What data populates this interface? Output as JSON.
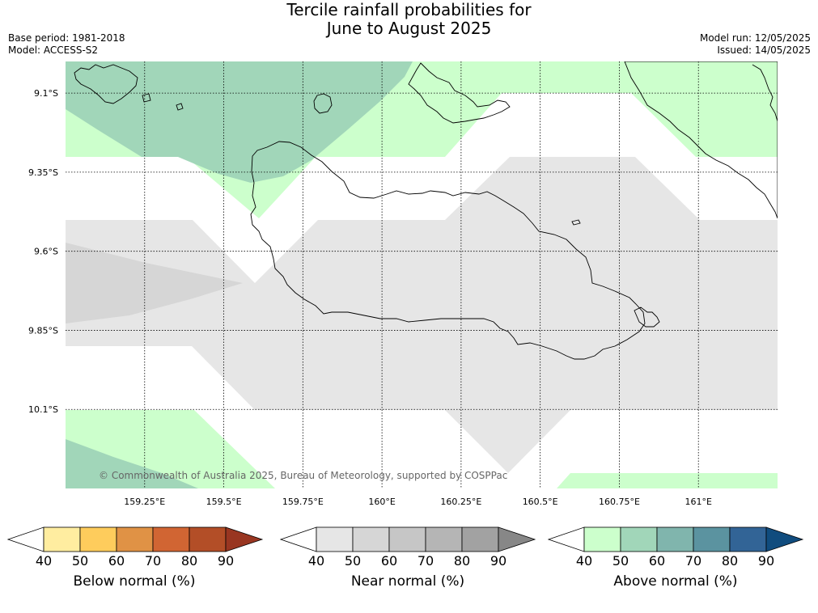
{
  "title": {
    "line1": "Tercile rainfall probabilities for",
    "line2": "June to August 2025"
  },
  "meta": {
    "base_period": "Base period: 1981-2018",
    "model": "Model: ACCESS-S2",
    "model_run": "Model run: 12/05/2025",
    "issued": "Issued: 14/05/2025"
  },
  "map": {
    "lat_labels": [
      "9.1°S",
      "9.35°S",
      "9.6°S",
      "9.85°S",
      "10.1°S"
    ],
    "lon_labels": [
      "159.25°E",
      "159.5°E",
      "159.75°E",
      "160°E",
      "160.25°E",
      "160.5°E",
      "160.75°E",
      "161°E"
    ],
    "lat_values": [
      -9.1,
      -9.35,
      -9.6,
      -9.85,
      -10.1
    ],
    "lon_values": [
      159.25,
      159.5,
      159.75,
      160.0,
      160.25,
      160.5,
      160.75,
      161.0
    ],
    "extent": {
      "lon_min": 159.0,
      "lon_max": 161.25,
      "lat_min": -10.35,
      "lat_max": -9.0
    },
    "copyright": "© Commonwealth of Australia 2025, Bureau of Meteorology, supported by COSPPac"
  },
  "colorbars": [
    {
      "label": "Below normal (%)",
      "ticks": [
        "40",
        "50",
        "60",
        "70",
        "80",
        "90"
      ],
      "colors": [
        "#ffffff",
        "#ffeda0",
        "#fecc5c",
        "#e09245",
        "#d16533",
        "#b34e27",
        "#993621"
      ]
    },
    {
      "label": "Near normal (%)",
      "ticks": [
        "40",
        "50",
        "60",
        "70",
        "80",
        "90"
      ],
      "colors": [
        "#ffffff",
        "#e6e6e6",
        "#d6d6d6",
        "#c6c6c6",
        "#b5b5b5",
        "#a2a2a2",
        "#878787"
      ]
    },
    {
      "label": "Above normal (%)",
      "ticks": [
        "40",
        "50",
        "60",
        "70",
        "80",
        "90"
      ],
      "colors": [
        "#ffffff",
        "#ccffcc",
        "#a1d6b9",
        "#80b5ad",
        "#5b93a0",
        "#326496",
        "#104c7e"
      ]
    }
  ],
  "colors": {
    "above_50": "#ccffcc",
    "above_60": "#a1d6b9",
    "near_50": "#e6e6e6",
    "near_60": "#d6d6d6",
    "coast": "#000000",
    "grid": "#000000",
    "copyright_text": "#666666"
  }
}
